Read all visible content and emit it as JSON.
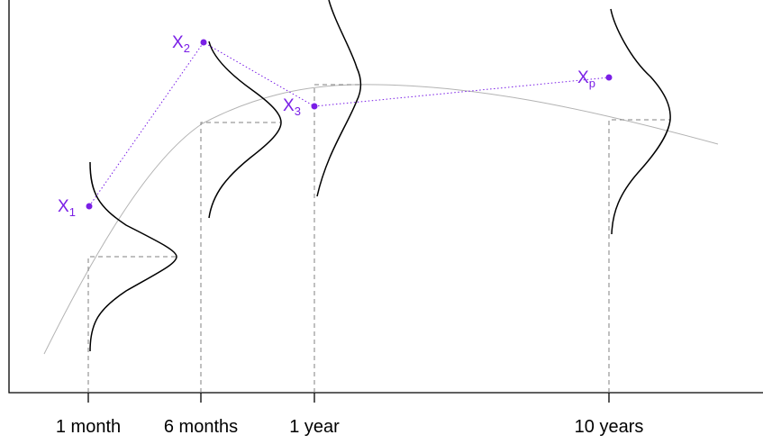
{
  "colors": {
    "frame": "#000000",
    "mean_curve": "#b3b3b3",
    "density": "#000000",
    "guide_lines": "#808080",
    "observations": "#7a1fe6"
  },
  "x_axis": {
    "ticks": [
      "1 month",
      "6 months",
      "1 year",
      "10 years"
    ]
  },
  "points": [
    {
      "letter": "X",
      "subscript": "1"
    },
    {
      "letter": "X",
      "subscript": "2"
    },
    {
      "letter": "X",
      "subscript": "3"
    },
    {
      "letter": "X",
      "subscript": "p"
    }
  ]
}
